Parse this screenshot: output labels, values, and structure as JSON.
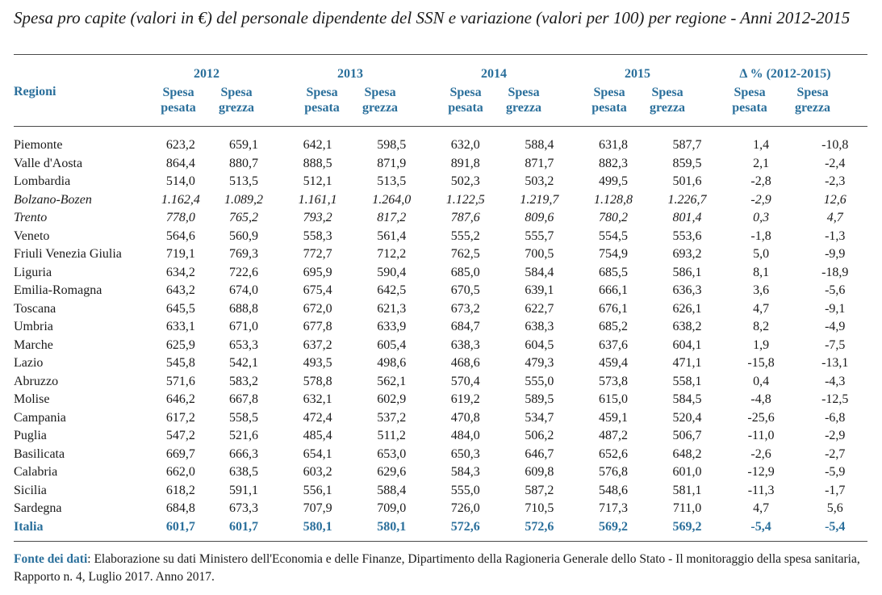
{
  "title": "Spesa pro capite (valori in €) del personale dipendente del SSN e variazione (valori per 100) per regione - Anni 2012-2015",
  "header": {
    "regioni": "Regioni",
    "groups": [
      "2012",
      "2013",
      "2014",
      "2015",
      "Δ % (2012-2015)"
    ],
    "sub_pesata": [
      "Spesa",
      "pesata"
    ],
    "sub_grezza": [
      "Spesa",
      "grezza"
    ]
  },
  "rows": [
    {
      "region": "Piemonte",
      "italic": false,
      "values": [
        "623,2",
        "659,1",
        "642,1",
        "598,5",
        "632,0",
        "588,4",
        "631,8",
        "587,7",
        "1,4",
        "-10,8"
      ]
    },
    {
      "region": "Valle d'Aosta",
      "italic": false,
      "values": [
        "864,4",
        "880,7",
        "888,5",
        "871,9",
        "891,8",
        "871,7",
        "882,3",
        "859,5",
        "2,1",
        "-2,4"
      ]
    },
    {
      "region": "Lombardia",
      "italic": false,
      "values": [
        "514,0",
        "513,5",
        "512,1",
        "513,5",
        "502,3",
        "503,2",
        "499,5",
        "501,6",
        "-2,8",
        "-2,3"
      ]
    },
    {
      "region": "Bolzano-Bozen",
      "italic": true,
      "values": [
        "1.162,4",
        "1.089,2",
        "1.161,1",
        "1.264,0",
        "1.122,5",
        "1.219,7",
        "1.128,8",
        "1.226,7",
        "-2,9",
        "12,6"
      ]
    },
    {
      "region": "Trento",
      "italic": true,
      "values": [
        "778,0",
        "765,2",
        "793,2",
        "817,2",
        "787,6",
        "809,6",
        "780,2",
        "801,4",
        "0,3",
        "4,7"
      ]
    },
    {
      "region": "Veneto",
      "italic": false,
      "values": [
        "564,6",
        "560,9",
        "558,3",
        "561,4",
        "555,2",
        "555,7",
        "554,5",
        "553,6",
        "-1,8",
        "-1,3"
      ]
    },
    {
      "region": "Friuli Venezia Giulia",
      "italic": false,
      "values": [
        "719,1",
        "769,3",
        "772,7",
        "712,2",
        "762,5",
        "700,5",
        "754,9",
        "693,2",
        "5,0",
        "-9,9"
      ]
    },
    {
      "region": "Liguria",
      "italic": false,
      "values": [
        "634,2",
        "722,6",
        "695,9",
        "590,4",
        "685,0",
        "584,4",
        "685,5",
        "586,1",
        "8,1",
        "-18,9"
      ]
    },
    {
      "region": "Emilia-Romagna",
      "italic": false,
      "values": [
        "643,2",
        "674,0",
        "675,4",
        "642,5",
        "670,5",
        "639,1",
        "666,1",
        "636,3",
        "3,6",
        "-5,6"
      ]
    },
    {
      "region": "Toscana",
      "italic": false,
      "values": [
        "645,5",
        "688,8",
        "672,0",
        "621,3",
        "673,2",
        "622,7",
        "676,1",
        "626,1",
        "4,7",
        "-9,1"
      ]
    },
    {
      "region": "Umbria",
      "italic": false,
      "values": [
        "633,1",
        "671,0",
        "677,8",
        "633,9",
        "684,7",
        "638,3",
        "685,2",
        "638,2",
        "8,2",
        "-4,9"
      ]
    },
    {
      "region": "Marche",
      "italic": false,
      "values": [
        "625,9",
        "653,3",
        "637,2",
        "605,4",
        "638,3",
        "604,5",
        "637,6",
        "604,1",
        "1,9",
        "-7,5"
      ]
    },
    {
      "region": "Lazio",
      "italic": false,
      "values": [
        "545,8",
        "542,1",
        "493,5",
        "498,6",
        "468,6",
        "479,3",
        "459,4",
        "471,1",
        "-15,8",
        "-13,1"
      ]
    },
    {
      "region": "Abruzzo",
      "italic": false,
      "values": [
        "571,6",
        "583,2",
        "578,8",
        "562,1",
        "570,4",
        "555,0",
        "573,8",
        "558,1",
        "0,4",
        "-4,3"
      ]
    },
    {
      "region": "Molise",
      "italic": false,
      "values": [
        "646,2",
        "667,8",
        "632,1",
        "602,9",
        "619,2",
        "589,5",
        "615,0",
        "584,5",
        "-4,8",
        "-12,5"
      ]
    },
    {
      "region": "Campania",
      "italic": false,
      "values": [
        "617,2",
        "558,5",
        "472,4",
        "537,2",
        "470,8",
        "534,7",
        "459,1",
        "520,4",
        "-25,6",
        "-6,8"
      ]
    },
    {
      "region": "Puglia",
      "italic": false,
      "values": [
        "547,2",
        "521,6",
        "485,4",
        "511,2",
        "484,0",
        "506,2",
        "487,2",
        "506,7",
        "-11,0",
        "-2,9"
      ]
    },
    {
      "region": "Basilicata",
      "italic": false,
      "values": [
        "669,7",
        "666,3",
        "654,1",
        "653,0",
        "650,3",
        "646,7",
        "652,6",
        "648,2",
        "-2,6",
        "-2,7"
      ]
    },
    {
      "region": "Calabria",
      "italic": false,
      "values": [
        "662,0",
        "638,5",
        "603,2",
        "629,6",
        "584,3",
        "609,8",
        "576,8",
        "601,0",
        "-12,9",
        "-5,9"
      ]
    },
    {
      "region": "Sicilia",
      "italic": false,
      "values": [
        "618,2",
        "591,1",
        "556,1",
        "588,4",
        "555,0",
        "587,2",
        "548,6",
        "581,1",
        "-11,3",
        "-1,7"
      ]
    },
    {
      "region": "Sardegna",
      "italic": false,
      "values": [
        "684,8",
        "673,3",
        "707,9",
        "709,0",
        "726,0",
        "710,5",
        "717,3",
        "711,0",
        "4,7",
        "5,6"
      ]
    }
  ],
  "total": {
    "region": "Italia",
    "values": [
      "601,7",
      "601,7",
      "580,1",
      "580,1",
      "572,6",
      "572,6",
      "569,2",
      "569,2",
      "-5,4",
      "-5,4"
    ]
  },
  "source": {
    "label": "Fonte dei dati",
    "text": ": Elaborazione su dati Ministero dell'Economia e delle Finanze, Dipartimento della Ragioneria Generale dello Stato - Il monitoraggio della spesa sanitaria, Rapporto n. 4, Luglio 2017. Anno 2017."
  }
}
